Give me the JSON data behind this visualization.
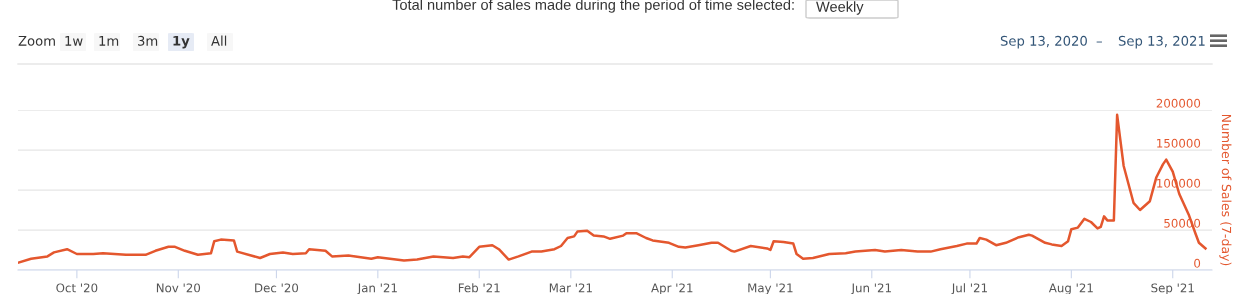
{
  "chart_data": {
    "type": "line",
    "title": "Total number of sales made during the period of time selected:",
    "ylabel": "Number of Sales (7-day)",
    "annotations": [
      "Zoom",
      "1w",
      "1m",
      "3m",
      "1y",
      "All",
      "Sep 13, 2020",
      "–",
      "Sep 13, 2021",
      "Weekly"
    ],
    "xlim": [
      "2020-09-13",
      "2021-09-13"
    ],
    "xticks": [
      {
        "value": "2020-10-01",
        "label": "Oct '20"
      },
      {
        "value": "2020-11-01",
        "label": "Nov '20"
      },
      {
        "value": "2020-12-01",
        "label": "Dec '20"
      },
      {
        "value": "2021-01-01",
        "label": "Jan '21"
      },
      {
        "value": "2021-02-01",
        "label": "Feb '21"
      },
      {
        "value": "2021-03-01",
        "label": "Mar '21"
      },
      {
        "value": "2021-04-01",
        "label": "Apr '21"
      },
      {
        "value": "2021-05-01",
        "label": "May '21"
      },
      {
        "value": "2021-06-01",
        "label": "Jun '21"
      },
      {
        "value": "2021-07-01",
        "label": "Jul '21"
      },
      {
        "value": "2021-08-01",
        "label": "Aug '21"
      },
      {
        "value": "2021-09-01",
        "label": "Sep '21"
      }
    ],
    "ylim": [
      0,
      200000
    ],
    "yticks": [
      0,
      50000,
      100000,
      150000,
      200000
    ],
    "grid": "y",
    "legend": false,
    "marker": "none",
    "line_style": "solid",
    "series": [
      {
        "color": "#e4572e",
        "x": [
          "2020-09-13",
          "2020-09-17",
          "2020-09-22",
          "2020-09-24",
          "2020-09-28",
          "2020-10-01",
          "2020-10-06",
          "2020-10-09",
          "2020-10-16",
          "2020-10-22",
          "2020-10-25",
          "2020-10-29",
          "2020-10-31",
          "2020-11-03",
          "2020-11-07",
          "2020-11-11",
          "2020-11-12",
          "2020-11-14",
          "2020-11-18",
          "2020-11-19",
          "2020-11-26",
          "2020-11-29",
          "2020-12-03",
          "2020-12-06",
          "2020-12-10",
          "2020-12-11",
          "2020-12-16",
          "2020-12-18",
          "2020-12-23",
          "2020-12-30",
          "2021-01-01",
          "2021-01-09",
          "2021-01-13",
          "2021-01-18",
          "2021-01-21",
          "2021-01-24",
          "2021-01-27",
          "2021-01-29",
          "2021-02-01",
          "2021-02-05",
          "2021-02-07",
          "2021-02-10",
          "2021-02-13",
          "2021-02-17",
          "2021-02-20",
          "2021-02-24",
          "2021-02-26",
          "2021-02-28",
          "2021-03-02",
          "2021-03-03",
          "2021-03-06",
          "2021-03-08",
          "2021-03-11",
          "2021-03-13",
          "2021-03-17",
          "2021-03-18",
          "2021-03-21",
          "2021-03-24",
          "2021-03-26",
          "2021-03-31",
          "2021-04-03",
          "2021-04-05",
          "2021-04-09",
          "2021-04-13",
          "2021-04-15",
          "2021-04-19",
          "2021-04-20",
          "2021-04-25",
          "2021-04-30",
          "2021-05-01",
          "2021-05-02",
          "2021-05-05",
          "2021-05-08",
          "2021-05-09",
          "2021-05-11",
          "2021-05-14",
          "2021-05-19",
          "2021-05-24",
          "2021-05-27",
          "2021-06-02",
          "2021-06-05",
          "2021-06-10",
          "2021-06-15",
          "2021-06-19",
          "2021-06-22",
          "2021-06-27",
          "2021-06-30",
          "2021-07-03",
          "2021-07-04",
          "2021-07-06",
          "2021-07-09",
          "2021-07-12",
          "2021-07-16",
          "2021-07-19",
          "2021-07-20",
          "2021-07-24",
          "2021-07-26",
          "2021-07-29",
          "2021-07-31",
          "2021-08-01",
          "2021-08-03",
          "2021-08-05",
          "2021-08-07",
          "2021-08-09",
          "2021-08-10",
          "2021-08-11",
          "2021-08-12",
          "2021-08-14",
          "2021-08-15",
          "2021-08-17",
          "2021-08-20",
          "2021-08-22",
          "2021-08-25",
          "2021-08-27",
          "2021-08-29",
          "2021-08-30",
          "2021-09-01",
          "2021-09-03",
          "2021-09-06",
          "2021-09-08",
          "2021-09-09",
          "2021-09-11"
        ],
        "values": [
          9000,
          14000,
          17000,
          22000,
          26000,
          20000,
          20000,
          21000,
          19000,
          19000,
          24000,
          29000,
          29000,
          24000,
          19000,
          21000,
          36000,
          38000,
          37000,
          23000,
          15000,
          20000,
          22000,
          20000,
          21000,
          26000,
          24000,
          17000,
          18000,
          14000,
          16000,
          12000,
          13000,
          17000,
          16000,
          15000,
          17000,
          16000,
          29000,
          31000,
          26000,
          13000,
          17000,
          23000,
          23000,
          26000,
          30000,
          40000,
          42000,
          48000,
          49000,
          43000,
          42000,
          39000,
          43000,
          46000,
          46000,
          40000,
          37000,
          34000,
          29000,
          28000,
          31000,
          34000,
          34000,
          24000,
          23000,
          30000,
          27000,
          25000,
          36000,
          35000,
          33000,
          20000,
          14000,
          15000,
          20000,
          21000,
          23000,
          25000,
          23000,
          25000,
          23000,
          23000,
          26000,
          30000,
          33000,
          33000,
          40000,
          38000,
          31000,
          34000,
          41000,
          44000,
          43000,
          34000,
          32000,
          30000,
          36000,
          51000,
          53000,
          64000,
          60000,
          52000,
          54000,
          67000,
          62000,
          62000,
          194000,
          130000,
          84000,
          75000,
          86000,
          116000,
          132000,
          138000,
          123000,
          95000,
          68000,
          45000,
          34000,
          27000
        ]
      }
    ]
  }
}
